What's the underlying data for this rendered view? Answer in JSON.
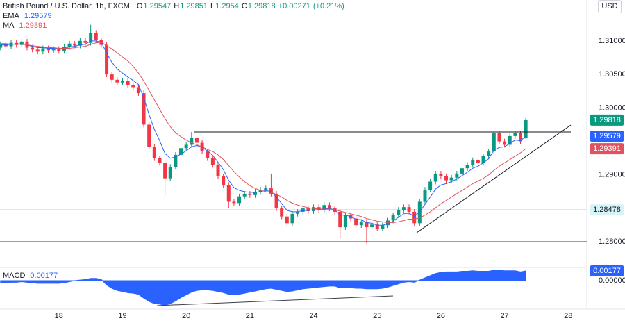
{
  "chart_data": [
    {
      "type": "candlestick",
      "title": "British Pound / U.S. Dollar, 1h, FXCM",
      "currency": "USD",
      "ohlc_labels": [
        "O",
        "H",
        "L",
        "C"
      ],
      "change": {
        "value": 0.00271,
        "label": "+0.00271"
      },
      "change_pct": {
        "value": 0.21,
        "label": "(+0.21%)"
      },
      "up_color": "#089981",
      "down_color": "#f23645",
      "xlim": [
        -0.1,
        110.5
      ],
      "xticks": [
        {
          "value": 11,
          "label": "18"
        },
        {
          "value": 23,
          "label": "19"
        },
        {
          "value": 35,
          "label": "20"
        },
        {
          "value": 47,
          "label": "21"
        },
        {
          "value": 59,
          "label": "24"
        },
        {
          "value": 71,
          "label": "25"
        },
        {
          "value": 83,
          "label": "26"
        },
        {
          "value": 95,
          "label": "27"
        },
        {
          "value": 107,
          "label": "28"
        }
      ],
      "ylim": [
        1.2762,
        1.3161
      ],
      "yticks": [
        {
          "value": 1.31,
          "label": "1.31000"
        },
        {
          "value": 1.305,
          "label": "1.30500"
        },
        {
          "value": 1.3,
          "label": "1.30000"
        },
        {
          "value": 1.29,
          "label": "1.29000"
        },
        {
          "value": 1.28,
          "label": "1.28000"
        }
      ],
      "open": [
        1.309,
        1.3095,
        1.3092,
        1.3097,
        1.3094,
        1.3099,
        1.309,
        1.3087,
        1.3084,
        1.3089,
        1.3086,
        1.3088,
        1.3085,
        1.3091,
        1.3096,
        1.3093,
        1.31,
        1.3097,
        1.3112,
        1.3101,
        1.3094,
        1.305,
        1.3042,
        1.3038,
        1.304,
        1.3034,
        1.3031,
        1.3022,
        1.2975,
        1.2942,
        1.2925,
        1.2918,
        1.2895,
        1.2912,
        1.293,
        1.294,
        1.2945,
        1.2955,
        1.2948,
        1.2935,
        1.2925,
        1.2915,
        1.2898,
        1.2885,
        1.286,
        1.2858,
        1.2868,
        1.2872,
        1.287,
        1.2875,
        1.2878,
        1.288,
        1.2872,
        1.285,
        1.2838,
        1.2828,
        1.2842,
        1.2845,
        1.285,
        1.2846,
        1.2852,
        1.2848,
        1.2855,
        1.285,
        1.2845,
        1.2822,
        1.284,
        1.2835,
        1.2825,
        1.283,
        1.2822,
        1.2826,
        1.282,
        1.2825,
        1.2832,
        1.284,
        1.2848,
        1.2852,
        1.2845,
        1.2828,
        1.286,
        1.2878,
        1.289,
        1.2902,
        1.2898,
        1.2892,
        1.2896,
        1.2902,
        1.291,
        1.2915,
        1.2922,
        1.2918,
        1.2928,
        1.2935,
        1.2962,
        1.295,
        1.2945,
        1.2958,
        1.2962,
        1.29547
      ],
      "high": [
        1.3099,
        1.3099,
        1.3101,
        1.3101,
        1.3103,
        1.3103,
        1.3094,
        1.3091,
        1.3093,
        1.3093,
        1.3092,
        1.3092,
        1.3095,
        1.31,
        1.31,
        1.3104,
        1.3104,
        1.3124,
        1.3116,
        1.3105,
        1.3098,
        1.3054,
        1.3046,
        1.3044,
        1.3044,
        1.3038,
        1.3035,
        1.3026,
        1.2979,
        1.2946,
        1.2929,
        1.2922,
        1.2916,
        1.2934,
        1.2944,
        1.2949,
        1.2964,
        1.2959,
        1.2952,
        1.2939,
        1.2929,
        1.2919,
        1.2902,
        1.2889,
        1.2864,
        1.2872,
        1.2876,
        1.2876,
        1.2879,
        1.2882,
        1.2884,
        1.2902,
        1.2876,
        1.2854,
        1.2842,
        1.2846,
        1.2849,
        1.2854,
        1.2854,
        1.2856,
        1.2856,
        1.2859,
        1.2859,
        1.2854,
        1.2849,
        1.2844,
        1.2844,
        1.2839,
        1.2834,
        1.2834,
        1.283,
        1.283,
        1.2829,
        1.2836,
        1.2844,
        1.2852,
        1.2856,
        1.2856,
        1.2849,
        1.2864,
        1.2882,
        1.2894,
        1.2906,
        1.2906,
        1.2902,
        1.29,
        1.2906,
        1.2914,
        1.2919,
        1.2926,
        1.2926,
        1.2932,
        1.2939,
        1.2966,
        1.2966,
        1.2954,
        1.2962,
        1.2966,
        1.2966,
        1.29851
      ],
      "low": [
        1.3086,
        1.3088,
        1.3088,
        1.309,
        1.309,
        1.3086,
        1.3083,
        1.308,
        1.308,
        1.3082,
        1.3082,
        1.3081,
        1.3081,
        1.3087,
        1.3089,
        1.3089,
        1.3093,
        1.3093,
        1.3097,
        1.309,
        1.3046,
        1.3038,
        1.3034,
        1.3034,
        1.303,
        1.3027,
        1.3018,
        1.2971,
        1.2938,
        1.2921,
        1.2914,
        1.287,
        1.2891,
        1.2908,
        1.2926,
        1.2936,
        1.2941,
        1.2944,
        1.2931,
        1.2921,
        1.2911,
        1.2894,
        1.2881,
        1.285,
        1.2854,
        1.2854,
        1.2864,
        1.2866,
        1.2866,
        1.2871,
        1.2874,
        1.2868,
        1.2846,
        1.2834,
        1.2824,
        1.2824,
        1.2838,
        1.2841,
        1.2842,
        1.2842,
        1.2844,
        1.2844,
        1.2846,
        1.2841,
        1.2805,
        1.2818,
        1.2831,
        1.2821,
        1.2821,
        1.2798,
        1.2818,
        1.2816,
        1.2816,
        1.2821,
        1.2828,
        1.2836,
        1.2844,
        1.2841,
        1.2824,
        1.2824,
        1.2856,
        1.2874,
        1.2886,
        1.2894,
        1.2888,
        1.2888,
        1.2892,
        1.2898,
        1.2906,
        1.2911,
        1.2914,
        1.2914,
        1.2924,
        1.2931,
        1.2946,
        1.2941,
        1.2941,
        1.2954,
        1.2946,
        1.2954
      ],
      "close": [
        1.3095,
        1.3092,
        1.3097,
        1.3094,
        1.3099,
        1.309,
        1.3087,
        1.3084,
        1.3089,
        1.3086,
        1.3088,
        1.3085,
        1.3091,
        1.3096,
        1.3093,
        1.31,
        1.3097,
        1.3112,
        1.3101,
        1.3094,
        1.305,
        1.3042,
        1.3038,
        1.304,
        1.3034,
        1.3031,
        1.3022,
        1.2975,
        1.2942,
        1.2925,
        1.2918,
        1.2895,
        1.2912,
        1.293,
        1.294,
        1.2945,
        1.2955,
        1.2948,
        1.2935,
        1.2925,
        1.2915,
        1.2898,
        1.2885,
        1.286,
        1.2858,
        1.2868,
        1.2872,
        1.287,
        1.2875,
        1.2878,
        1.288,
        1.2872,
        1.285,
        1.2838,
        1.2828,
        1.2842,
        1.2845,
        1.285,
        1.2846,
        1.2852,
        1.2848,
        1.2855,
        1.285,
        1.2845,
        1.2822,
        1.284,
        1.2835,
        1.2825,
        1.283,
        1.2822,
        1.2826,
        1.282,
        1.2825,
        1.2832,
        1.284,
        1.2848,
        1.2852,
        1.2845,
        1.2828,
        1.286,
        1.2878,
        1.289,
        1.2902,
        1.2898,
        1.2892,
        1.2896,
        1.2902,
        1.291,
        1.2915,
        1.2922,
        1.2918,
        1.2928,
        1.2935,
        1.2962,
        1.295,
        1.2945,
        1.2958,
        1.2962,
        1.295,
        1.29818
      ],
      "series": [
        {
          "name": "EMA",
          "color": "#2962ff",
          "values": [
            1.3094,
            1.3094,
            1.3095,
            1.3095,
            1.3096,
            1.3094,
            1.3092,
            1.309,
            1.309,
            1.3089,
            1.3089,
            1.3088,
            1.3089,
            1.3091,
            1.3092,
            1.3094,
            1.3095,
            1.31,
            1.31,
            1.3098,
            1.3082,
            1.3068,
            1.3058,
            1.3052,
            1.3046,
            1.3041,
            1.3035,
            1.3015,
            1.299,
            1.2968,
            1.2951,
            1.2932,
            1.2925,
            1.2927,
            1.2931,
            1.2936,
            1.2942,
            1.2944,
            1.2941,
            1.2936,
            1.2929,
            1.2919,
            1.2908,
            1.2892,
            1.2881,
            1.2877,
            1.2875,
            1.2874,
            1.2874,
            1.2875,
            1.2877,
            1.2875,
            1.2867,
            1.2857,
            1.2847,
            1.2845,
            1.2845,
            1.2847,
            1.2847,
            1.2848,
            1.2848,
            1.285,
            1.285,
            1.2848,
            1.284,
            1.284,
            1.2838,
            1.2834,
            1.2833,
            1.2829,
            1.2828,
            1.2825,
            1.2825,
            1.2827,
            1.2831,
            1.2837,
            1.2842,
            1.2843,
            1.2838,
            1.2845,
            1.2856,
            1.2867,
            1.2879,
            1.2885,
            1.2887,
            1.289,
            1.2894,
            1.2899,
            1.2904,
            1.291,
            1.2913,
            1.2918,
            1.2924,
            1.2937,
            1.2941,
            1.2942,
            1.2947,
            1.2952,
            1.2951,
            1.29579
          ]
        },
        {
          "name": "MA",
          "color": "#e0525e",
          "values": [
            1.3096,
            1.3096,
            1.3095,
            1.3095,
            1.3095,
            1.3094,
            1.3093,
            1.3092,
            1.3091,
            1.309,
            1.309,
            1.3089,
            1.3089,
            1.3089,
            1.309,
            1.3091,
            1.3092,
            1.3095,
            1.3097,
            1.3098,
            1.3093,
            1.3088,
            1.3082,
            1.3076,
            1.307,
            1.3062,
            1.3052,
            1.304,
            1.3026,
            1.3012,
            1.2998,
            1.2984,
            1.2972,
            1.2963,
            1.2957,
            1.2952,
            1.2948,
            1.2945,
            1.2942,
            1.2938,
            1.2935,
            1.293,
            1.2923,
            1.2914,
            1.2905,
            1.2897,
            1.289,
            1.2884,
            1.288,
            1.2877,
            1.2875,
            1.2874,
            1.2871,
            1.2867,
            1.2862,
            1.2858,
            1.2855,
            1.2853,
            1.2851,
            1.285,
            1.2849,
            1.2849,
            1.2849,
            1.2848,
            1.2846,
            1.2844,
            1.2842,
            1.284,
            1.2838,
            1.2835,
            1.2833,
            1.2831,
            1.283,
            1.2829,
            1.2829,
            1.283,
            1.2832,
            1.2834,
            1.2834,
            1.2836,
            1.284,
            1.2845,
            1.2851,
            1.2857,
            1.2862,
            1.2867,
            1.2872,
            1.2877,
            1.2882,
            1.2887,
            1.2891,
            1.2895,
            1.29,
            1.2907,
            1.2913,
            1.2918,
            1.2923,
            1.2928,
            1.2933,
            1.29391
          ]
        }
      ],
      "hline": {
        "value": 1.28478,
        "color": "#26c6da"
      }
    },
    {
      "type": "area",
      "xlim": [
        -0.1,
        110.5
      ],
      "ylim": [
        -0.0052,
        0.0024
      ],
      "yticks": [
        {
          "value": 0,
          "label": "0.00000"
        }
      ],
      "series": [
        {
          "name": "MACD",
          "color": "#2962ff",
          "values": [
            -0.0004,
            -0.0004,
            -0.0003,
            -0.0003,
            -0.0002,
            -0.0003,
            -0.0004,
            -0.0005,
            -0.0005,
            -0.0005,
            -0.0005,
            -0.0005,
            -0.0004,
            -0.0002,
            0.0,
            0.0001,
            0.0002,
            0.0004,
            0.0004,
            0.0002,
            -0.0008,
            -0.0014,
            -0.0018,
            -0.002,
            -0.0022,
            -0.0023,
            -0.0025,
            -0.0032,
            -0.0038,
            -0.0042,
            -0.0043,
            -0.0045,
            -0.0042,
            -0.0037,
            -0.0031,
            -0.0026,
            -0.0021,
            -0.0018,
            -0.0017,
            -0.0017,
            -0.0018,
            -0.002,
            -0.0022,
            -0.0025,
            -0.0026,
            -0.0025,
            -0.0023,
            -0.0021,
            -0.0019,
            -0.0017,
            -0.0015,
            -0.0014,
            -0.0016,
            -0.0018,
            -0.002,
            -0.0019,
            -0.0017,
            -0.0015,
            -0.0014,
            -0.0013,
            -0.0012,
            -0.0011,
            -0.001,
            -0.001,
            -0.0013,
            -0.0013,
            -0.0013,
            -0.0014,
            -0.0014,
            -0.0015,
            -0.0015,
            -0.0015,
            -0.0014,
            -0.0012,
            -0.0009,
            -0.0006,
            -0.0003,
            -0.0002,
            -0.0003,
            0.0001,
            0.0005,
            0.0009,
            0.0013,
            0.0015,
            0.0016,
            0.0016,
            0.0016,
            0.0017,
            0.0017,
            0.0018,
            0.0017,
            0.0017,
            0.0017,
            0.0019,
            0.0019,
            0.0018,
            0.0018,
            0.0018,
            0.0016,
            0.00177
          ]
        }
      ]
    }
  ]
}
